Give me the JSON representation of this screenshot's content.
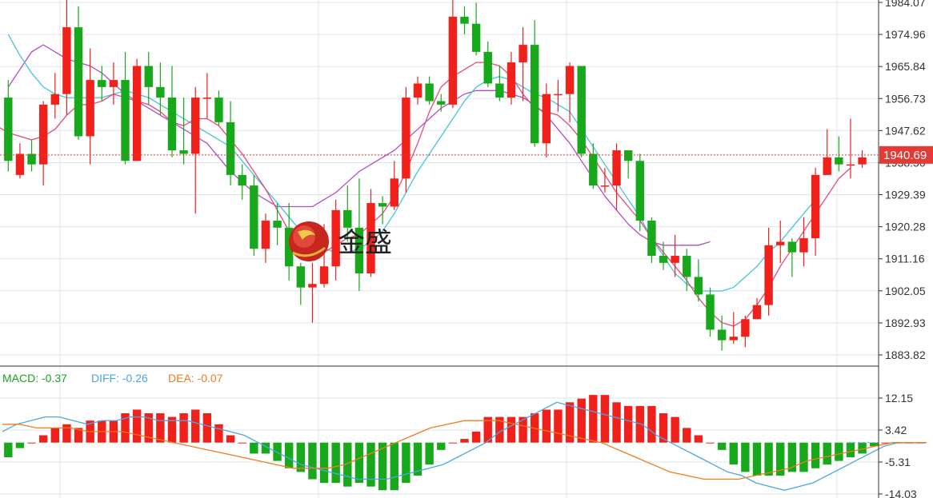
{
  "logo": {
    "text": "金盛"
  },
  "price_tag": "1940.69",
  "indicator": {
    "macd_label": "MACD: -0.37",
    "diff_label": "DIFF: -0.26",
    "dea_label": "DEA: -0.07"
  },
  "colors": {
    "up": "#f0211b",
    "down": "#17a81b",
    "ma_fast": "#e64a7a",
    "ma_mid": "#45c3dd",
    "ma_slow": "#b24ec8",
    "diff": "#4aa6e6",
    "dea": "#f07c1e",
    "price_line": "#e53935",
    "grid": "#dfe5ee",
    "macd_label": "#19a51b"
  },
  "chart_data": [
    {
      "type": "candlestick",
      "y_ticks": [
        "1984.07",
        "1974.96",
        "1965.84",
        "1956.73",
        "1947.62",
        "1938.50",
        "1929.39",
        "1920.28",
        "1911.16",
        "1902.05",
        "1892.93",
        "1883.82"
      ],
      "ylim": [
        1883.82,
        1984.07
      ],
      "current_price": 1940.69,
      "candles": [
        [
          1957,
          1939,
          1962,
          1936
        ],
        [
          1935,
          1941,
          1944,
          1934
        ],
        [
          1941,
          1938,
          1945,
          1936
        ],
        [
          1938,
          1955,
          1956,
          1932
        ],
        [
          1955,
          1958,
          1964,
          1951
        ],
        [
          1958,
          1977,
          1985,
          1952
        ],
        [
          1977,
          1946,
          1983,
          1945
        ],
        [
          1946,
          1962,
          1971,
          1938
        ],
        [
          1962,
          1960,
          1966,
          1956
        ],
        [
          1960,
          1962,
          1967,
          1955
        ],
        [
          1962,
          1939,
          1970,
          1938
        ],
        [
          1939,
          1966,
          1968,
          1939
        ],
        [
          1966,
          1960,
          1970,
          1955
        ],
        [
          1960,
          1957,
          1967,
          1952
        ],
        [
          1957,
          1942,
          1966,
          1940
        ],
        [
          1942,
          1941,
          1957,
          1938
        ],
        [
          1941,
          1957,
          1960,
          1924
        ],
        [
          1957,
          1957,
          1964,
          1951
        ],
        [
          1957,
          1950,
          1959,
          1949
        ],
        [
          1950,
          1935,
          1956,
          1932
        ],
        [
          1935,
          1932,
          1938,
          1928
        ],
        [
          1932,
          1914,
          1935,
          1912
        ],
        [
          1914,
          1922,
          1924,
          1910
        ],
        [
          1922,
          1920,
          1927,
          1915
        ],
        [
          1920,
          1909,
          1927,
          1905
        ],
        [
          1909,
          1903,
          1910,
          1898
        ],
        [
          1903,
          1904,
          1910,
          1893
        ],
        [
          1904,
          1909,
          1921,
          1903
        ],
        [
          1909,
          1925,
          1928,
          1905
        ],
        [
          1925,
          1920,
          1932,
          1916
        ],
        [
          1920,
          1907,
          1934,
          1902
        ],
        [
          1907,
          1927,
          1931,
          1906
        ],
        [
          1927,
          1926,
          1929,
          1921
        ],
        [
          1926,
          1934,
          1939,
          1925
        ],
        [
          1934,
          1957,
          1960,
          1930
        ],
        [
          1957,
          1961,
          1963,
          1955
        ],
        [
          1961,
          1956,
          1963,
          1955
        ],
        [
          1956,
          1955,
          1958,
          1953
        ],
        [
          1955,
          1980,
          1987,
          1954
        ],
        [
          1980,
          1978,
          1983,
          1975
        ],
        [
          1978,
          1970,
          1984,
          1969
        ],
        [
          1970,
          1961,
          1973,
          1960
        ],
        [
          1961,
          1957,
          1966,
          1956
        ],
        [
          1957,
          1967,
          1970,
          1955
        ],
        [
          1967,
          1972,
          1977,
          1956
        ],
        [
          1972,
          1944,
          1979,
          1943
        ],
        [
          1944,
          1958,
          1961,
          1940
        ],
        [
          1958,
          1958,
          1962,
          1953
        ],
        [
          1958,
          1966,
          1967,
          1950
        ],
        [
          1966,
          1941,
          1966,
          1940
        ],
        [
          1941,
          1932,
          1944,
          1931
        ],
        [
          1932,
          1932,
          1937,
          1930
        ],
        [
          1932,
          1942,
          1944,
          1925
        ],
        [
          1942,
          1939,
          1941,
          1934
        ],
        [
          1939,
          1922,
          1941,
          1919
        ],
        [
          1922,
          1912,
          1923,
          1910
        ],
        [
          1912,
          1910,
          1916,
          1908
        ],
        [
          1910,
          1912,
          1918,
          1906
        ],
        [
          1912,
          1906,
          1914,
          1902
        ],
        [
          1906,
          1901,
          1911,
          1899
        ],
        [
          1901,
          1891,
          1903,
          1889
        ],
        [
          1891,
          1888,
          1895,
          1885
        ],
        [
          1888,
          1889,
          1896,
          1887
        ],
        [
          1889,
          1894,
          1895,
          1886
        ],
        [
          1894,
          1898,
          1900,
          1894
        ],
        [
          1898,
          1915,
          1920,
          1895
        ],
        [
          1915,
          1916,
          1922,
          1910
        ],
        [
          1916,
          1913,
          1917,
          1906
        ],
        [
          1913,
          1917,
          1923,
          1909
        ],
        [
          1917,
          1935,
          1937,
          1912
        ],
        [
          1935,
          1940,
          1948,
          1935
        ],
        [
          1940,
          1938,
          1946,
          1936
        ],
        [
          1938,
          1938,
          1951,
          1934
        ],
        [
          1938,
          1940,
          1942,
          1937
        ]
      ],
      "ma_fast": [
        1949,
        1947,
        1946,
        1945,
        1946,
        1948,
        1952,
        1955,
        1955,
        1956,
        1958,
        1957,
        1956,
        1955,
        1953,
        1950,
        1949,
        1951,
        1951,
        1949,
        1945,
        1941,
        1936,
        1931,
        1925,
        1919,
        1915,
        1913,
        1913,
        1915,
        1917,
        1918,
        1921,
        1924,
        1929,
        1936,
        1944,
        1953,
        1960,
        1963,
        1965,
        1967,
        1967,
        1966,
        1963,
        1958,
        1954,
        1953,
        1952,
        1949,
        1945,
        1940,
        1935,
        1930,
        1926,
        1922,
        1917,
        1913,
        1909,
        1905,
        1900,
        1896,
        1893,
        1892,
        1894,
        1898,
        1903,
        1909,
        1914,
        1919,
        1924,
        1929,
        1934,
        1937
      ],
      "ma_mid": [
        1975,
        1969,
        1964,
        1960,
        1958,
        1957,
        1957,
        1957,
        1957,
        1958,
        1959,
        1958,
        1957,
        1955,
        1953,
        1951,
        1949,
        1947,
        1945,
        1943,
        1939,
        1935,
        1931,
        1927,
        1923,
        1919,
        1916,
        1914,
        1913,
        1913,
        1914,
        1916,
        1919,
        1924,
        1930,
        1936,
        1941,
        1946,
        1951,
        1956,
        1960,
        1962,
        1963,
        1962,
        1960,
        1958,
        1957,
        1955,
        1953,
        1948,
        1943,
        1938,
        1933,
        1928,
        1923,
        1917,
        1912,
        1907,
        1904,
        1902,
        1902,
        1902,
        1903,
        1906,
        1909,
        1913,
        1916,
        1920,
        1924,
        1928
      ],
      "ma_slow": [
        1960,
        1965,
        1970,
        1972,
        1970,
        1968,
        1967,
        1966,
        1964,
        1961,
        1958,
        1956,
        1954,
        1952,
        1950,
        1948,
        1946,
        1944,
        1940,
        1936,
        1933,
        1930,
        1928,
        1926,
        1926,
        1926,
        1926,
        1928,
        1930,
        1933,
        1936,
        1938,
        1940,
        1942,
        1945,
        1948,
        1951,
        1954,
        1956,
        1958,
        1959,
        1959,
        1959,
        1958,
        1957,
        1955,
        1952,
        1948,
        1944,
        1939,
        1934,
        1929,
        1925,
        1921,
        1918,
        1916,
        1915,
        1915,
        1915,
        1915,
        1916
      ]
    },
    {
      "type": "macd",
      "y_ticks": [
        "12.15",
        "3.42",
        "-5.31",
        "-14.03"
      ],
      "ylim": [
        -14.03,
        12.15
      ],
      "histogram": [
        -4,
        -1.5,
        0,
        2,
        4,
        5,
        4,
        6,
        6,
        6,
        8,
        9,
        8,
        8,
        7,
        8,
        9,
        8,
        5,
        2,
        0,
        -3,
        -3,
        -5,
        -7,
        -8,
        -10,
        -11,
        -11,
        -12,
        -11,
        -12,
        -13,
        -13,
        -11,
        -9,
        -6,
        -2,
        0,
        1,
        3,
        7,
        7,
        7,
        7,
        8,
        9,
        9,
        11,
        12,
        13,
        13,
        11,
        10,
        10,
        10,
        8,
        7,
        4,
        2,
        0,
        -2,
        -6,
        -8,
        -9,
        -9,
        -9,
        -8,
        -8,
        -7,
        -6,
        -5,
        -4,
        -3,
        -1,
        0,
        0,
        0,
        0
      ],
      "diff": [
        3,
        5,
        6,
        7,
        7,
        6,
        5,
        6,
        6,
        7,
        7,
        6,
        6,
        6,
        5,
        4,
        3,
        2,
        0,
        -2,
        -4,
        -6,
        -7,
        -8,
        -9,
        -10,
        -10,
        -10,
        -9,
        -8,
        -7,
        -6,
        -4,
        -2,
        0,
        3,
        5,
        7,
        9,
        11,
        10,
        9,
        8,
        7,
        6,
        5,
        2,
        0,
        -2,
        -4,
        -6,
        -8,
        -9,
        -11,
        -12,
        -13,
        -12,
        -11,
        -9,
        -7,
        -5,
        -3,
        -1,
        0,
        0,
        0
      ],
      "dea": [
        5,
        5,
        4,
        4,
        4,
        3,
        3,
        3,
        2,
        1,
        0,
        -1,
        -2,
        -3,
        -4,
        -5,
        -6,
        -7,
        -7,
        -7,
        -6,
        -4,
        -2,
        0,
        2,
        4,
        5,
        6,
        6,
        6,
        5,
        4,
        3,
        2,
        1,
        0,
        -2,
        -4,
        -6,
        -8,
        -9,
        -10,
        -10,
        -10,
        -9,
        -8,
        -7,
        -5,
        -4,
        -3,
        -2,
        -1,
        0,
        0,
        0
      ]
    }
  ]
}
